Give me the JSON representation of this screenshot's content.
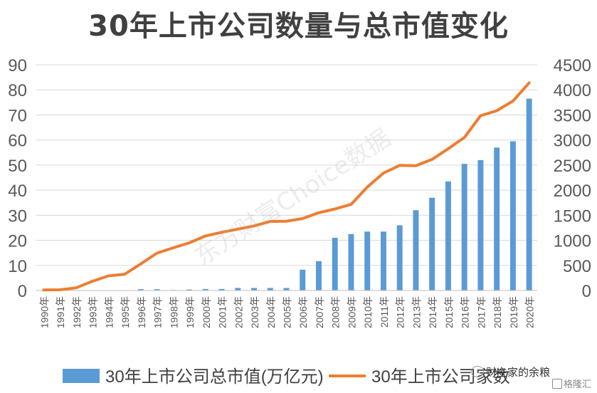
{
  "title": "30年上市公司数量与总市值变化",
  "watermark": "东方财富Choice数据",
  "attribution": {
    "wechat": "财主家的余粮",
    "brand": "格隆汇"
  },
  "chart_data": {
    "type": "bar+line",
    "title": "30年上市公司数量与总市值变化",
    "categories": [
      "1990年",
      "1991年",
      "1992年",
      "1993年",
      "1994年",
      "1995年",
      "1996年",
      "1997年",
      "1998年",
      "1999年",
      "2000年",
      "2001年",
      "2002年",
      "2003年",
      "2004年",
      "2005年",
      "2006年",
      "2007年",
      "2008年",
      "2009年",
      "2010年",
      "2011年",
      "2012年",
      "2013年",
      "2014年",
      "2015年",
      "2016年",
      "2017年",
      "2018年",
      "2019年",
      "2020年"
    ],
    "series": [
      {
        "name": "30年上市公司总市值(万亿元)",
        "type": "bar",
        "axis": "left",
        "color": "#5b9bd5",
        "values": [
          0.01,
          0.02,
          0.05,
          0.1,
          0.1,
          0.1,
          0.5,
          0.5,
          0.2,
          0.4,
          0.6,
          0.6,
          1.0,
          1.0,
          1.0,
          1.0,
          8.3,
          11.7,
          21.0,
          22.5,
          23.5,
          23.5,
          26.0,
          32.0,
          37.0,
          43.5,
          50.5,
          52.0,
          57.0,
          59.5,
          76.5
        ]
      },
      {
        "name": "30年上市公司家数",
        "type": "line",
        "axis": "right",
        "color": "#ed7d31",
        "values": [
          10,
          14,
          53,
          183,
          291,
          323,
          530,
          745,
          851,
          949,
          1088,
          1160,
          1224,
          1287,
          1377,
          1381,
          1434,
          1550,
          1625,
          1718,
          2063,
          2342,
          2494,
          2489,
          2613,
          2827,
          3052,
          3485,
          3584,
          3777,
          4140
        ]
      }
    ],
    "y_left": {
      "min": 0,
      "max": 90,
      "ticks": [
        0,
        10,
        20,
        30,
        40,
        50,
        60,
        70,
        80,
        90
      ]
    },
    "y_right": {
      "min": 0,
      "max": 4500,
      "ticks": [
        0,
        500,
        1000,
        1500,
        2000,
        2500,
        3000,
        3500,
        4000,
        4500
      ]
    },
    "grid": true,
    "legend": "bottom"
  }
}
